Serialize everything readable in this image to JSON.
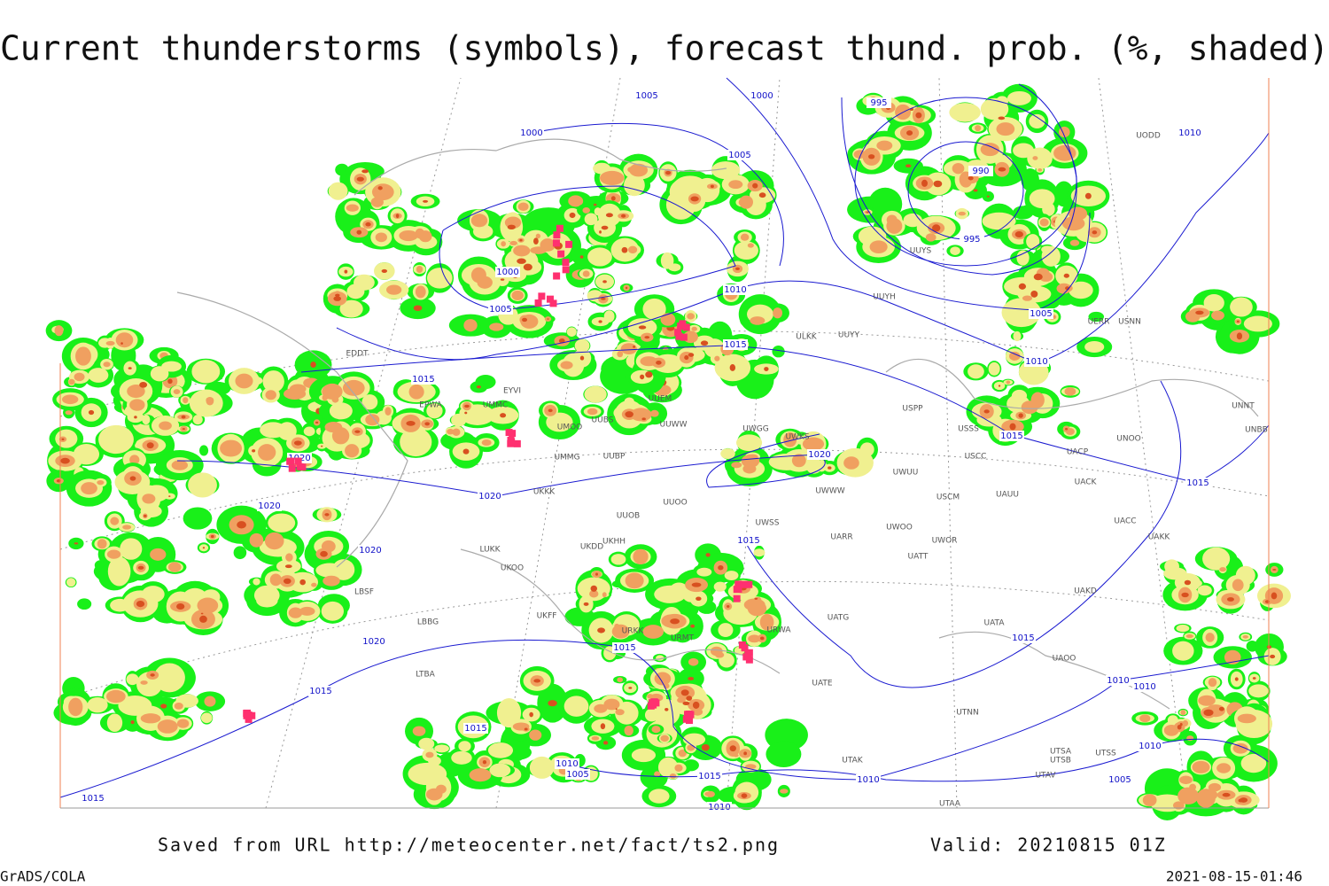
{
  "header": {
    "title": "Current thunderstorms (symbols), forecast thund. prob. (%, shaded)"
  },
  "isobar_labels": [
    "1005",
    "1000",
    "995",
    "1000",
    "1005",
    "990",
    "1010",
    "995",
    "1000",
    "1005",
    "1010",
    "1005",
    "1010",
    "1015",
    "1015",
    "1020",
    "1020",
    "1015",
    "1015",
    "1020",
    "1020",
    "1020",
    "1015",
    "1015",
    "1020",
    "1015",
    "1015",
    "1010",
    "1010",
    "1015",
    "1010",
    "1010",
    "1005",
    "1015",
    "1010",
    "1005",
    "1015",
    "1010"
  ],
  "station_labels": [
    "UODD",
    "UUYS",
    "UUYH",
    "UUYY",
    "ULKK",
    "USNN",
    "UERR",
    "USPP",
    "USSS",
    "UNOO",
    "UNNT",
    "UNBB",
    "UACP",
    "USCC",
    "UACK",
    "UWUU",
    "UWKS",
    "UWGG",
    "UUEM",
    "UUWW",
    "UUBS",
    "UMOO",
    "UMMG",
    "UUBP",
    "UMMC",
    "EPWA",
    "EDDT",
    "EYVI",
    "UKKK",
    "UUOO",
    "UUOB",
    "USCM",
    "UAUU",
    "UWWW",
    "UWSS",
    "UARR",
    "UWOO",
    "UWOR",
    "UATT",
    "UACC",
    "UAKK",
    "UAKD",
    "UATG",
    "UATA",
    "UAOO",
    "UATE",
    "UTNN",
    "UTAK",
    "UTSA",
    "UTSB",
    "UTSS",
    "UTAV",
    "UTAA",
    "LUKK",
    "UKOO",
    "LBSF",
    "LBBG",
    "UKFF",
    "URKK",
    "URWA",
    "URMT",
    "LTBA",
    "UKHH",
    "UKDD"
  ],
  "footer": {
    "source": "Saved from URL http://meteocenter.net/fact/ts2.png",
    "valid": "Valid: 20210815 01Z",
    "software": "GrADS/COLA",
    "timestamp": "2021-08-15-01:46"
  }
}
